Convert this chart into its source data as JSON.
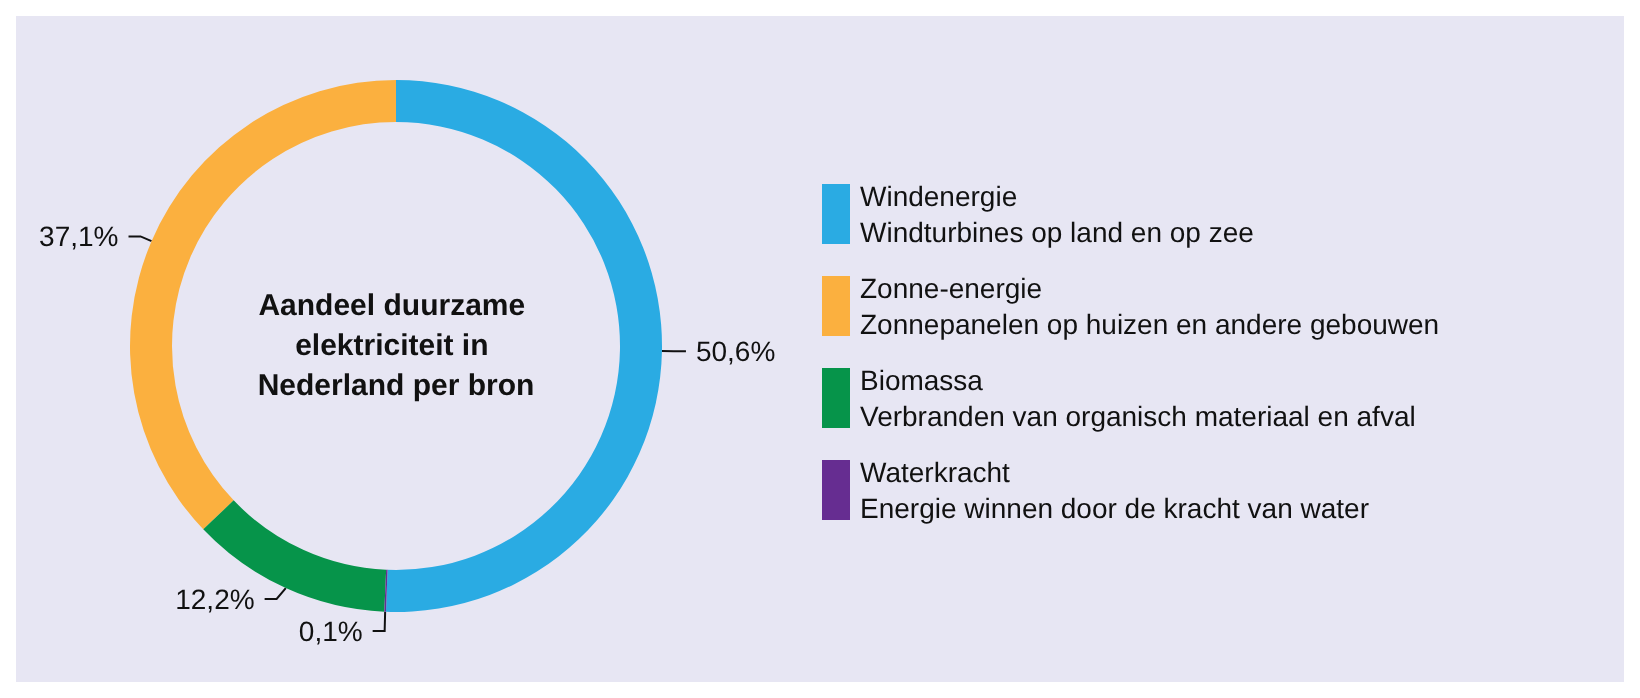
{
  "chart_data": {
    "type": "donut",
    "title": "Aandeel duurzame elektriciteit in Nederland per bron",
    "categories": [
      "Windenergie",
      "Zonne-energie",
      "Biomassa",
      "Waterkracht"
    ],
    "values": [
      50.6,
      37.1,
      12.2,
      0.1
    ],
    "colors": [
      "#2aabe3",
      "#fbb03f",
      "#06944a",
      "#662d91"
    ],
    "value_labels": [
      "50,6%",
      "37,1%",
      "12,2%",
      "0,1%"
    ],
    "annotations": [
      "Windturbines op land en op zee",
      "Zonnepanelen op huizen en andere gebouwen",
      "Verbranden van organisch materiaal en afval",
      "Energie winnen door de kracht van water"
    ],
    "legend": "right"
  }
}
